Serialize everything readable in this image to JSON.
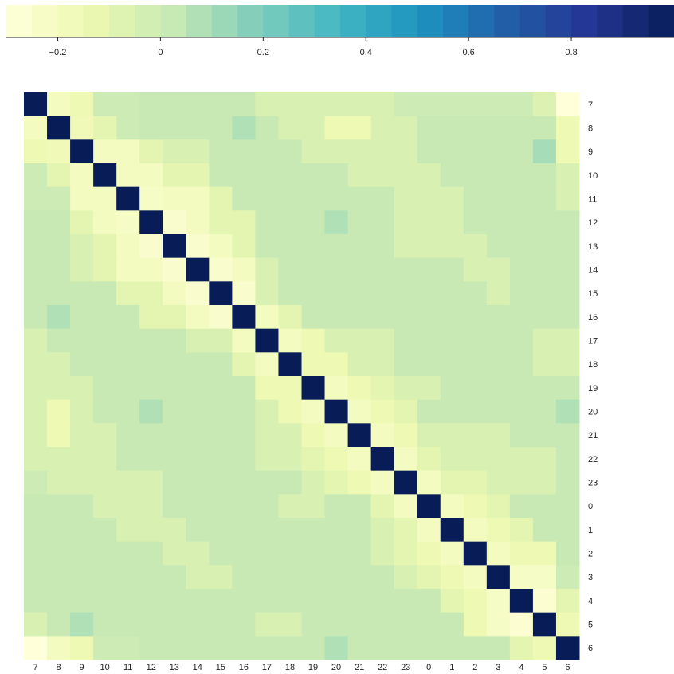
{
  "chart_data": {
    "type": "heatmap",
    "title": "",
    "xlabel": "",
    "ylabel": "",
    "row_labels": [
      "7",
      "8",
      "9",
      "10",
      "11",
      "12",
      "13",
      "14",
      "15",
      "16",
      "17",
      "18",
      "19",
      "20",
      "21",
      "22",
      "23",
      "0",
      "1",
      "2",
      "3",
      "4",
      "5",
      "6"
    ],
    "col_labels": [
      "7",
      "8",
      "9",
      "10",
      "11",
      "12",
      "13",
      "14",
      "15",
      "16",
      "17",
      "18",
      "19",
      "20",
      "21",
      "22",
      "23",
      "0",
      "1",
      "2",
      "3",
      "4",
      "5",
      "6"
    ],
    "values": [
      [
        1.0,
        -0.2,
        -0.15,
        0.0,
        0.0,
        0.02,
        0.02,
        0.02,
        0.02,
        0.02,
        -0.05,
        -0.05,
        -0.05,
        -0.05,
        -0.05,
        -0.05,
        0.0,
        0.0,
        0.0,
        0.0,
        0.0,
        0.0,
        -0.07,
        -0.3
      ],
      [
        -0.2,
        1.0,
        -0.17,
        -0.1,
        0.0,
        0.02,
        0.02,
        0.02,
        0.02,
        0.08,
        0.02,
        -0.05,
        -0.05,
        -0.15,
        -0.15,
        -0.05,
        -0.05,
        0.02,
        0.02,
        0.02,
        0.02,
        0.02,
        0.02,
        -0.15
      ],
      [
        -0.15,
        -0.17,
        1.0,
        -0.2,
        -0.2,
        -0.1,
        -0.05,
        -0.05,
        0.02,
        0.02,
        0.02,
        0.02,
        -0.05,
        -0.05,
        -0.05,
        -0.05,
        -0.05,
        0.02,
        0.02,
        0.02,
        0.02,
        0.02,
        0.1,
        -0.15
      ],
      [
        0.0,
        -0.1,
        -0.2,
        1.0,
        -0.2,
        -0.2,
        -0.1,
        -0.1,
        0.02,
        0.02,
        0.02,
        0.02,
        0.02,
        0.02,
        -0.05,
        -0.05,
        -0.05,
        -0.05,
        0.02,
        0.02,
        0.02,
        0.02,
        0.02,
        -0.05
      ],
      [
        0.0,
        0.0,
        -0.2,
        -0.2,
        1.0,
        -0.22,
        -0.2,
        -0.2,
        -0.1,
        0.02,
        0.02,
        0.02,
        0.02,
        0.02,
        0.02,
        0.02,
        -0.05,
        -0.05,
        -0.05,
        0.02,
        0.02,
        0.02,
        0.02,
        -0.05
      ],
      [
        0.02,
        0.02,
        -0.1,
        -0.2,
        -0.22,
        1.0,
        -0.25,
        -0.2,
        -0.1,
        -0.1,
        0.02,
        0.02,
        0.02,
        0.08,
        0.02,
        0.02,
        -0.05,
        -0.05,
        -0.05,
        0.02,
        0.02,
        0.02,
        0.02,
        0.02
      ],
      [
        0.02,
        0.02,
        -0.05,
        -0.1,
        -0.2,
        -0.25,
        1.0,
        -0.25,
        -0.2,
        -0.1,
        0.02,
        0.02,
        0.02,
        0.02,
        0.02,
        0.02,
        -0.05,
        -0.05,
        -0.05,
        -0.05,
        0.02,
        0.02,
        0.02,
        0.02
      ],
      [
        0.02,
        0.02,
        -0.05,
        -0.1,
        -0.2,
        -0.2,
        -0.25,
        1.0,
        -0.25,
        -0.2,
        -0.05,
        0.02,
        0.02,
        0.02,
        0.02,
        0.02,
        0.02,
        0.02,
        0.02,
        -0.05,
        -0.05,
        0.02,
        0.02,
        0.02
      ],
      [
        0.02,
        0.02,
        0.02,
        0.02,
        -0.1,
        -0.1,
        -0.2,
        -0.25,
        1.0,
        -0.25,
        -0.05,
        0.02,
        0.02,
        0.02,
        0.02,
        0.02,
        0.02,
        0.02,
        0.02,
        0.02,
        -0.05,
        0.02,
        0.02,
        0.02
      ],
      [
        0.02,
        0.08,
        0.02,
        0.02,
        0.02,
        -0.1,
        -0.1,
        -0.2,
        -0.25,
        1.0,
        -0.2,
        -0.1,
        0.02,
        0.02,
        0.02,
        0.02,
        0.02,
        0.02,
        0.02,
        0.02,
        0.02,
        0.02,
        0.02,
        0.02
      ],
      [
        -0.05,
        0.02,
        0.02,
        0.02,
        0.02,
        0.02,
        0.02,
        -0.05,
        -0.05,
        -0.2,
        1.0,
        -0.2,
        -0.15,
        -0.05,
        -0.05,
        -0.05,
        0.02,
        0.02,
        0.02,
        0.02,
        0.02,
        0.02,
        -0.05,
        -0.05
      ],
      [
        -0.05,
        -0.05,
        0.02,
        0.02,
        0.02,
        0.02,
        0.02,
        0.02,
        0.02,
        -0.1,
        -0.2,
        1.0,
        -0.15,
        -0.15,
        -0.05,
        -0.05,
        0.02,
        0.02,
        0.02,
        0.02,
        0.02,
        0.02,
        -0.05,
        -0.05
      ],
      [
        -0.05,
        -0.05,
        -0.05,
        0.02,
        0.02,
        0.02,
        0.02,
        0.02,
        0.02,
        0.02,
        -0.15,
        -0.15,
        1.0,
        -0.2,
        -0.15,
        -0.1,
        -0.05,
        -0.05,
        0.02,
        0.02,
        0.02,
        0.02,
        0.02,
        0.02
      ],
      [
        -0.05,
        -0.15,
        -0.05,
        0.02,
        0.02,
        0.08,
        0.02,
        0.02,
        0.02,
        0.02,
        -0.05,
        -0.15,
        -0.2,
        1.0,
        -0.2,
        -0.15,
        -0.1,
        0.02,
        0.02,
        0.02,
        0.02,
        0.02,
        0.02,
        0.08
      ],
      [
        -0.05,
        -0.15,
        -0.05,
        -0.05,
        0.02,
        0.02,
        0.02,
        0.02,
        0.02,
        0.02,
        -0.05,
        -0.05,
        -0.15,
        -0.2,
        1.0,
        -0.2,
        -0.15,
        -0.05,
        -0.05,
        -0.05,
        -0.05,
        0.02,
        0.02,
        0.02
      ],
      [
        -0.05,
        -0.05,
        -0.05,
        -0.05,
        0.02,
        0.02,
        0.02,
        0.02,
        0.02,
        0.02,
        -0.05,
        -0.05,
        -0.1,
        -0.15,
        -0.2,
        1.0,
        -0.2,
        -0.1,
        -0.05,
        -0.05,
        -0.05,
        -0.05,
        -0.05,
        0.02
      ],
      [
        0.0,
        -0.05,
        -0.05,
        -0.05,
        -0.05,
        -0.05,
        0.02,
        0.02,
        0.02,
        0.02,
        0.02,
        0.02,
        -0.05,
        -0.1,
        -0.15,
        -0.2,
        1.0,
        -0.2,
        -0.1,
        -0.1,
        -0.05,
        -0.05,
        -0.05,
        0.02
      ],
      [
        0.02,
        0.02,
        0.02,
        -0.05,
        -0.05,
        -0.05,
        0.02,
        0.02,
        0.02,
        0.02,
        0.02,
        -0.05,
        -0.05,
        0.02,
        0.02,
        -0.1,
        -0.2,
        1.0,
        -0.2,
        -0.15,
        -0.1,
        0.02,
        0.02,
        0.02
      ],
      [
        0.02,
        0.02,
        0.02,
        0.02,
        -0.05,
        -0.05,
        -0.05,
        0.02,
        0.02,
        0.02,
        0.02,
        0.02,
        0.02,
        0.02,
        0.02,
        -0.05,
        -0.1,
        -0.2,
        1.0,
        -0.2,
        -0.15,
        -0.1,
        0.02,
        0.02
      ],
      [
        0.02,
        0.02,
        0.02,
        0.02,
        0.02,
        0.02,
        -0.05,
        -0.05,
        0.02,
        0.02,
        0.02,
        0.02,
        0.02,
        0.02,
        0.02,
        -0.05,
        -0.1,
        -0.15,
        -0.2,
        1.0,
        -0.2,
        -0.15,
        -0.15,
        0.02
      ],
      [
        0.02,
        0.02,
        0.02,
        0.02,
        0.02,
        0.02,
        0.02,
        -0.05,
        -0.05,
        0.02,
        0.02,
        0.02,
        0.02,
        0.02,
        0.02,
        0.02,
        -0.05,
        -0.1,
        -0.15,
        -0.2,
        1.0,
        -0.22,
        -0.22,
        0.0
      ],
      [
        0.02,
        0.02,
        0.02,
        0.02,
        0.02,
        0.02,
        0.02,
        0.02,
        0.02,
        0.02,
        0.02,
        0.02,
        0.02,
        0.02,
        0.02,
        0.02,
        0.02,
        0.02,
        -0.1,
        -0.15,
        -0.22,
        1.0,
        -0.27,
        -0.1
      ],
      [
        -0.05,
        0.02,
        0.08,
        0.02,
        0.02,
        0.02,
        0.02,
        0.02,
        0.02,
        0.02,
        -0.05,
        -0.05,
        0.02,
        0.02,
        0.02,
        0.02,
        0.02,
        0.02,
        0.02,
        -0.15,
        -0.22,
        -0.27,
        1.0,
        -0.15
      ],
      [
        -0.3,
        -0.2,
        -0.15,
        0.0,
        0.0,
        0.02,
        0.02,
        0.02,
        0.02,
        0.02,
        0.02,
        0.02,
        0.02,
        0.08,
        0.02,
        0.02,
        0.02,
        0.02,
        0.02,
        0.02,
        0.02,
        -0.1,
        -0.15,
        1.0
      ]
    ],
    "colormap": [
      "#ffffd9",
      "#edf8b1",
      "#c7e9b4",
      "#7fcdbb",
      "#41b6c4",
      "#1d91c0",
      "#225ea8",
      "#253494",
      "#081d58"
    ],
    "colorbar": {
      "orientation": "horizontal",
      "position": "top",
      "vmin": -0.3,
      "vmax": 1.0,
      "bins": 26,
      "ticks": [
        -0.2,
        0,
        0.2,
        0.4,
        0.6,
        0.8
      ],
      "tick_labels": [
        "−0.2",
        "0",
        "0.2",
        "0.4",
        "0.6",
        "0.8"
      ]
    },
    "grid": false,
    "legend": "none"
  }
}
